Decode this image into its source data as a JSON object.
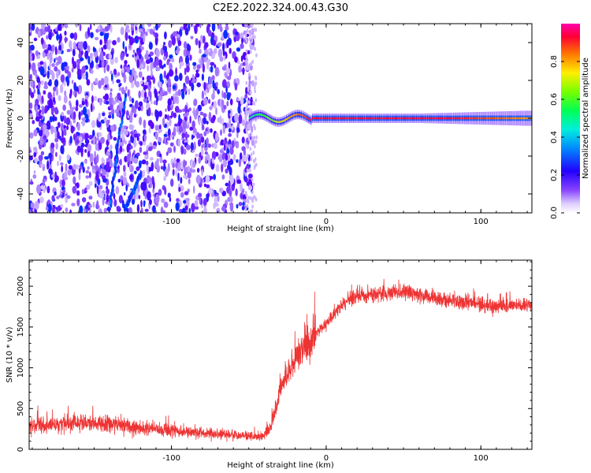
{
  "title": "C2E2.2022.324.00.43.G30",
  "chart_data": [
    {
      "type": "heatmap",
      "xlabel": "Height of straight line (km)",
      "ylabel": "Frequency (Hz)",
      "xlim": [
        -192,
        133
      ],
      "ylim": [
        -50,
        50
      ],
      "xticks": [
        -100,
        0,
        100
      ],
      "yticks": [
        -40,
        -20,
        0,
        20,
        40
      ],
      "colorbar": {
        "label": "Normalized spectral amplitude",
        "range": [
          0.0,
          1.0
        ],
        "ticks": [
          "0.0",
          "0.2",
          "0.4",
          "0.6",
          "0.8"
        ],
        "colormap": [
          "#ffffff",
          "#9966ff",
          "#5500ff",
          "#0033ff",
          "#00ccff",
          "#00ff66",
          "#66ff00",
          "#ffdd00",
          "#ff6600",
          "#ff0033",
          "#ff00aa"
        ]
      },
      "features": {
        "noise_region_x": [
          -192,
          -50
        ],
        "signal_start_x": -50,
        "signal_frequency_hz": 0,
        "signal_peak_amplitude": 0.9,
        "oscillation_x": [
          -50,
          -10
        ],
        "oscillation_amplitude_hz": 2,
        "streaks": [
          {
            "x": [
              -140,
              -130
            ],
            "y": [
              -48,
              12
            ]
          },
          {
            "x": [
              -130,
              -120
            ],
            "y": [
              -48,
              -30
            ]
          }
        ]
      }
    },
    {
      "type": "line",
      "xlabel": "Height of straight line (km)",
      "ylabel": "SNR (10 * v/v)",
      "xlim": [
        -192,
        133
      ],
      "ylim": [
        0,
        2320
      ],
      "xticks": [
        -100,
        0,
        100
      ],
      "yticks": [
        0,
        500,
        1000,
        1500,
        2000
      ],
      "color": "#ee3333",
      "series": [
        {
          "x": [
            -192,
            -180,
            -160,
            -140,
            -120,
            -100,
            -80,
            -60,
            -50,
            -40,
            -35,
            -30,
            -25,
            -20,
            -15,
            -10,
            -5,
            0,
            5,
            10,
            15,
            20,
            30,
            40,
            50,
            60,
            70,
            80,
            90,
            100,
            110,
            120,
            133
          ],
          "y": [
            280,
            300,
            320,
            310,
            260,
            230,
            200,
            175,
            160,
            170,
            300,
            700,
            950,
            1100,
            1250,
            1300,
            1450,
            1550,
            1650,
            1750,
            1850,
            1880,
            1900,
            1920,
            1930,
            1900,
            1850,
            1820,
            1800,
            1770,
            1760,
            1760,
            1770
          ]
        }
      ]
    }
  ]
}
